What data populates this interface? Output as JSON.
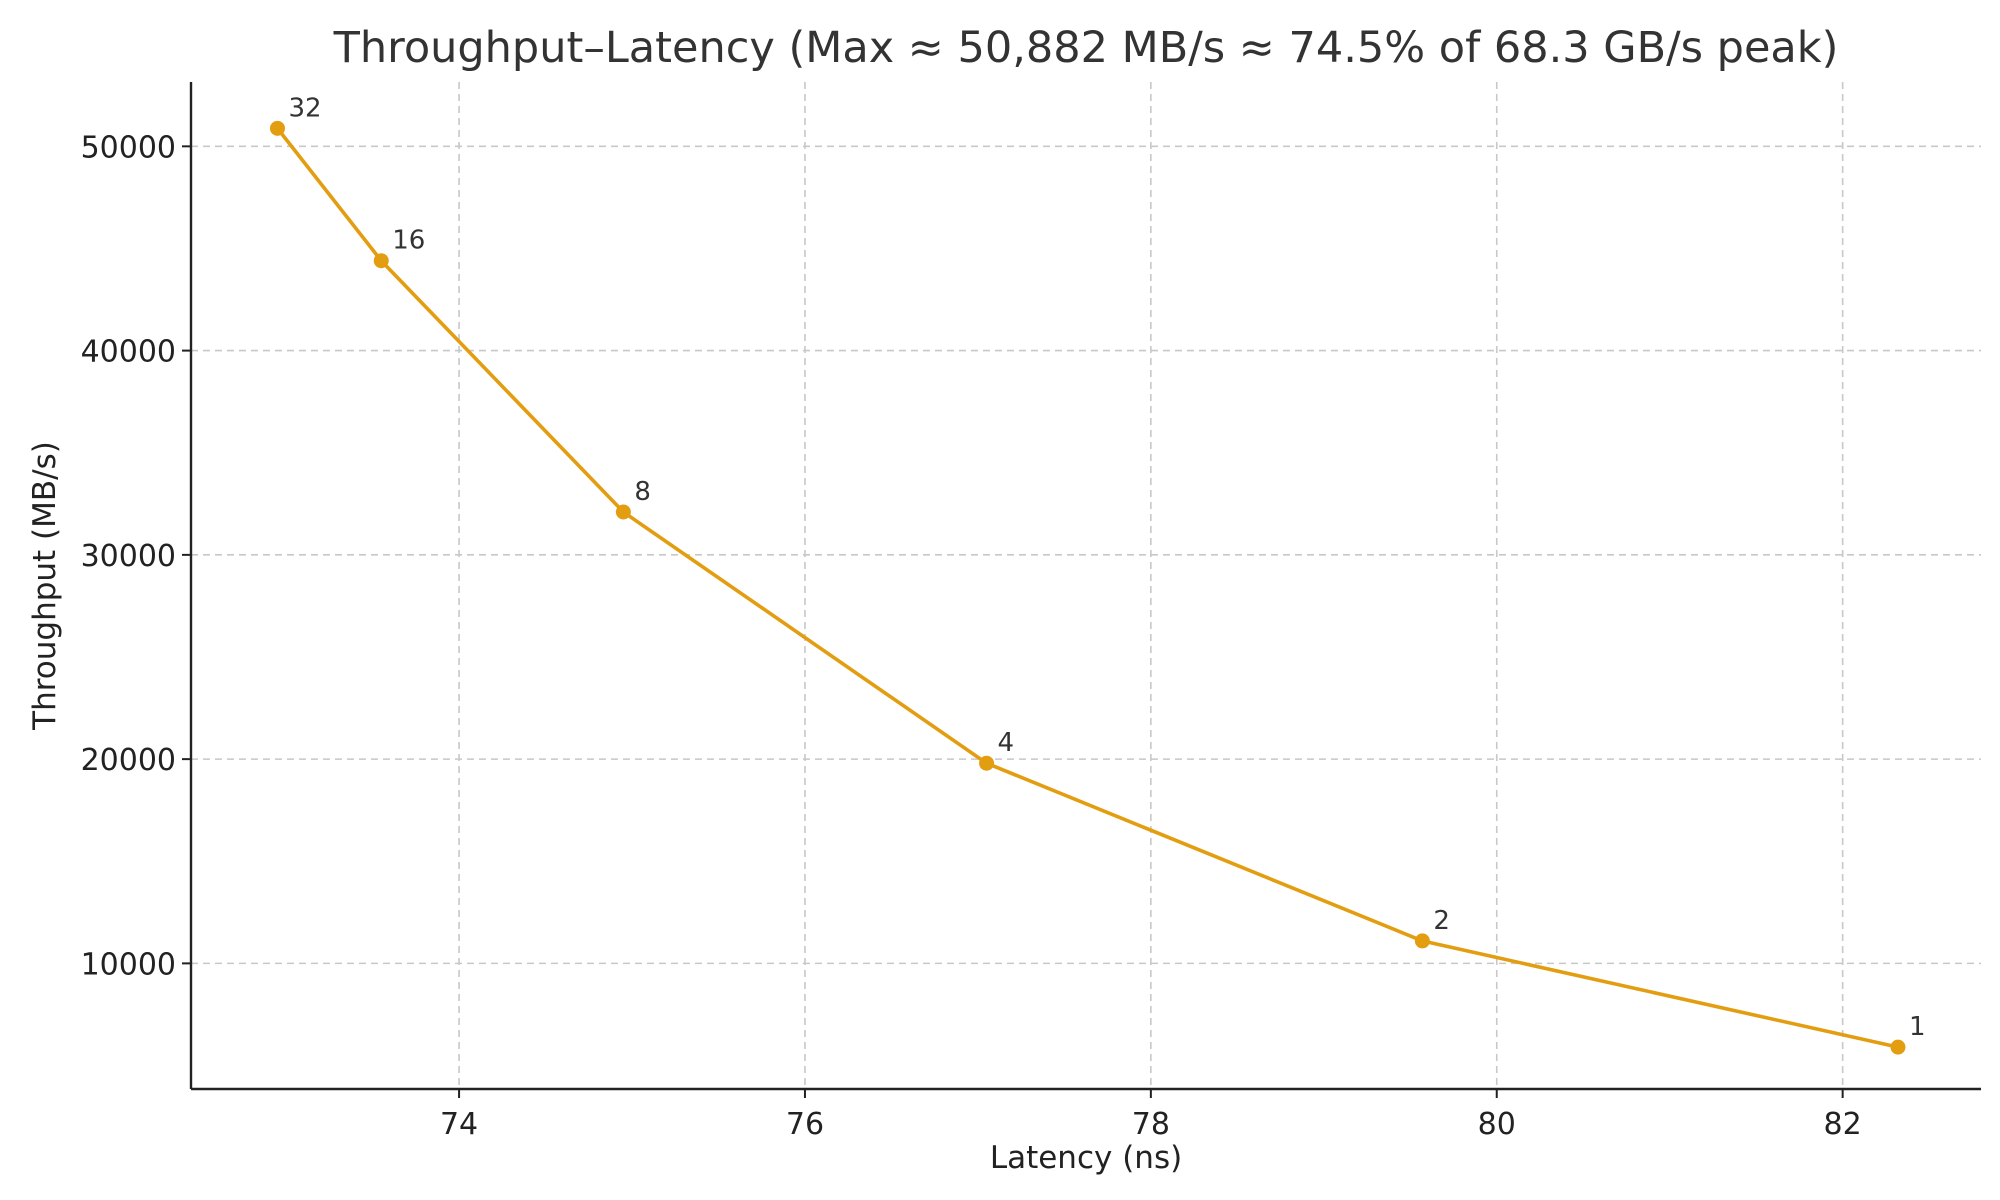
{
  "chart_data": {
    "type": "line",
    "title": "Throughput–Latency (Max ≈ 50,882 MB/s ≈ 74.5% of 68.3 GB/s peak)",
    "xlabel": "Latency (ns)",
    "ylabel": "Throughput (MB/s)",
    "xlim": [
      72.45,
      82.8
    ],
    "ylim": [
      3850,
      53150
    ],
    "x_ticks": [
      74,
      76,
      78,
      80,
      82
    ],
    "y_ticks": [
      10000,
      20000,
      30000,
      40000,
      50000
    ],
    "grid": true,
    "legend": "none",
    "series": [
      {
        "color": "#e39d10",
        "points": [
          {
            "x": 72.95,
            "y": 50882,
            "label": "32"
          },
          {
            "x": 73.55,
            "y": 44400,
            "label": "16"
          },
          {
            "x": 74.95,
            "y": 32100,
            "label": "8"
          },
          {
            "x": 77.05,
            "y": 19800,
            "label": "4"
          },
          {
            "x": 79.57,
            "y": 11100,
            "label": "2"
          },
          {
            "x": 82.32,
            "y": 5900,
            "label": "1"
          }
        ]
      }
    ]
  }
}
